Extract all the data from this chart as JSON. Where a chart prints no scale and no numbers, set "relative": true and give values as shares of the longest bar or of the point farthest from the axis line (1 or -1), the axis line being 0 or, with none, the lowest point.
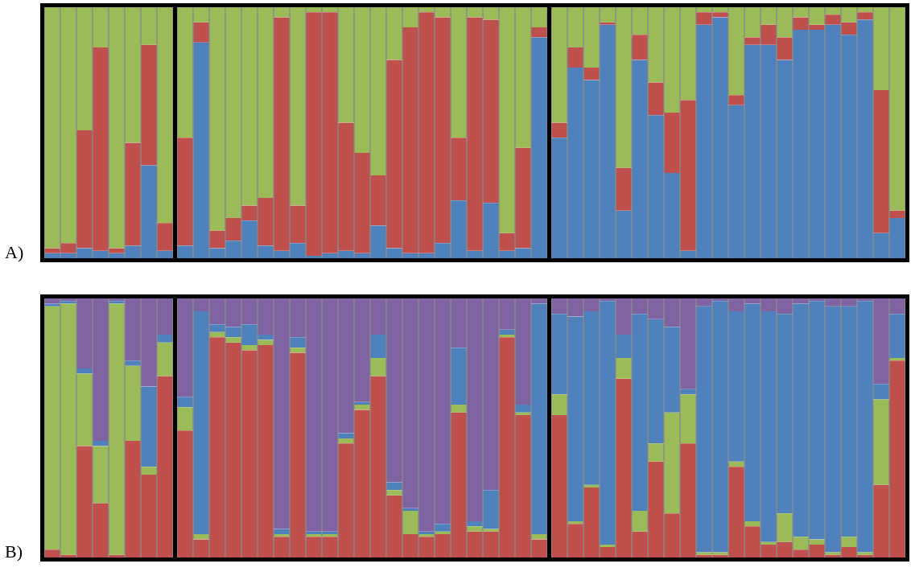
{
  "chart_data": [
    {
      "type": "bar",
      "stacked": true,
      "relative": true,
      "annotations": [
        "A)"
      ],
      "categories": [
        null,
        null,
        null,
        null,
        null,
        null,
        null,
        null
      ],
      "series": [
        {
          "color": "#4f81bd",
          "values": [
            0.02,
            0.02,
            0.04,
            0.03,
            0.02,
            0.05,
            0.37,
            0.03
          ]
        },
        {
          "color": "#c0504d",
          "values": [
            0.02,
            0.04,
            0.47,
            0.81,
            0.02,
            0.41,
            0.48,
            0.11
          ]
        },
        {
          "color": "#9bbb59",
          "values": [
            0.96,
            0.94,
            0.49,
            0.16,
            0.96,
            0.54,
            0.15,
            0.86
          ]
        }
      ]
    },
    {
      "type": "bar",
      "stacked": true,
      "relative": true,
      "categories": [
        null,
        null,
        null,
        null,
        null,
        null,
        null,
        null,
        null,
        null,
        null,
        null,
        null,
        null,
        null,
        null,
        null,
        null,
        null,
        null,
        null,
        null,
        null
      ],
      "series": [
        {
          "color": "#4f81bd",
          "values": [
            0.05,
            0.86,
            0.04,
            0.07,
            0.15,
            0.05,
            0.03,
            0.06,
            0.01,
            0.02,
            0.03,
            0.02,
            0.13,
            0.04,
            0.02,
            0.02,
            0.06,
            0.23,
            0.03,
            0.22,
            0.03,
            0.04,
            0.88
          ]
        },
        {
          "color": "#c0504d",
          "values": [
            0.43,
            0.08,
            0.07,
            0.09,
            0.06,
            0.19,
            0.93,
            0.15,
            0.97,
            0.96,
            0.51,
            0.4,
            0.2,
            0.75,
            0.9,
            0.96,
            0.9,
            0.25,
            0.93,
            0.73,
            0.07,
            0.4,
            0.04
          ]
        },
        {
          "color": "#9bbb59",
          "values": [
            0.52,
            0.06,
            0.89,
            0.84,
            0.79,
            0.76,
            0.04,
            0.79,
            0.02,
            0.02,
            0.46,
            0.58,
            0.67,
            0.21,
            0.08,
            0.02,
            0.04,
            0.52,
            0.04,
            0.05,
            0.9,
            0.56,
            0.08
          ]
        }
      ]
    },
    {
      "type": "bar",
      "stacked": true,
      "relative": true,
      "categories": [
        null,
        null,
        null,
        null,
        null,
        null,
        null,
        null,
        null,
        null,
        null,
        null,
        null,
        null,
        null,
        null,
        null,
        null,
        null,
        null,
        null,
        null
      ],
      "series": [
        {
          "color": "#4f81bd",
          "values": [
            0.48,
            0.76,
            0.71,
            0.93,
            0.19,
            0.79,
            0.57,
            0.34,
            0.03,
            0.93,
            0.96,
            0.61,
            0.85,
            0.85,
            0.79,
            0.91,
            0.91,
            0.93,
            0.89,
            0.95,
            0.1,
            0.16
          ]
        },
        {
          "color": "#c0504d",
          "values": [
            0.06,
            0.08,
            0.05,
            0.01,
            0.17,
            0.1,
            0.13,
            0.24,
            0.6,
            0.05,
            0.02,
            0.04,
            0.03,
            0.08,
            0.09,
            0.05,
            0.02,
            0.04,
            0.05,
            0.03,
            0.57,
            0.03
          ]
        },
        {
          "color": "#9bbb59",
          "values": [
            0.46,
            0.16,
            0.24,
            0.06,
            0.64,
            0.11,
            0.3,
            0.42,
            0.37,
            0.02,
            0.02,
            0.35,
            0.12,
            0.07,
            0.12,
            0.04,
            0.07,
            0.03,
            0.06,
            0.02,
            0.33,
            0.81
          ]
        }
      ]
    },
    {
      "type": "bar",
      "stacked": true,
      "relative": true,
      "annotations": [
        "B)"
      ],
      "categories": [
        null,
        null,
        null,
        null,
        null,
        null,
        null,
        null
      ],
      "series": [
        {
          "color": "#c0504d",
          "values": [
            0.03,
            0.01,
            0.43,
            0.21,
            0.01,
            0.45,
            0.32,
            0.7
          ]
        },
        {
          "color": "#9bbb59",
          "values": [
            0.94,
            0.97,
            0.28,
            0.22,
            0.97,
            0.29,
            0.03,
            0.13
          ]
        },
        {
          "color": "#4f81bd",
          "values": [
            0.01,
            0.01,
            0.02,
            0.02,
            0.01,
            0.02,
            0.31,
            0.03
          ]
        },
        {
          "color": "#8064a2",
          "values": [
            0.02,
            0.01,
            0.27,
            0.55,
            0.01,
            0.24,
            0.34,
            0.14
          ]
        }
      ]
    },
    {
      "type": "bar",
      "stacked": true,
      "relative": true,
      "categories": [
        null,
        null,
        null,
        null,
        null,
        null,
        null,
        null,
        null,
        null,
        null,
        null,
        null,
        null,
        null,
        null,
        null,
        null,
        null,
        null,
        null,
        null,
        null
      ],
      "series": [
        {
          "color": "#c0504d",
          "values": [
            0.49,
            0.07,
            0.85,
            0.83,
            0.8,
            0.82,
            0.08,
            0.79,
            0.08,
            0.08,
            0.44,
            0.57,
            0.7,
            0.24,
            0.09,
            0.08,
            0.09,
            0.56,
            0.1,
            0.1,
            0.85,
            0.55,
            0.07
          ]
        },
        {
          "color": "#9bbb59",
          "values": [
            0.09,
            0.02,
            0.02,
            0.02,
            0.02,
            0.02,
            0.01,
            0.02,
            0.01,
            0.01,
            0.02,
            0.02,
            0.07,
            0.02,
            0.09,
            0.01,
            0.01,
            0.03,
            0.02,
            0.01,
            0.01,
            0.01,
            0.02
          ]
        },
        {
          "color": "#4f81bd",
          "values": [
            0.04,
            0.86,
            0.03,
            0.04,
            0.08,
            0.02,
            0.02,
            0.04,
            0.01,
            0.01,
            0.02,
            0.01,
            0.09,
            0.03,
            0.01,
            0.01,
            0.03,
            0.22,
            0.02,
            0.15,
            0.02,
            0.03,
            0.89
          ]
        },
        {
          "color": "#8064a2",
          "values": [
            0.38,
            0.05,
            0.1,
            0.11,
            0.1,
            0.14,
            0.89,
            0.15,
            0.9,
            0.9,
            0.52,
            0.4,
            0.14,
            0.71,
            0.81,
            0.9,
            0.87,
            0.19,
            0.86,
            0.74,
            0.12,
            0.41,
            0.02
          ]
        }
      ]
    },
    {
      "type": "bar",
      "stacked": true,
      "relative": true,
      "categories": [
        null,
        null,
        null,
        null,
        null,
        null,
        null,
        null,
        null,
        null,
        null,
        null,
        null,
        null,
        null,
        null,
        null,
        null,
        null,
        null,
        null,
        null
      ],
      "series": [
        {
          "color": "#c0504d",
          "values": [
            0.55,
            0.13,
            0.27,
            0.04,
            0.69,
            0.1,
            0.37,
            0.17,
            0.44,
            0.01,
            0.01,
            0.35,
            0.12,
            0.05,
            0.06,
            0.03,
            0.05,
            0.01,
            0.04,
            0.01,
            0.28,
            0.76
          ]
        },
        {
          "color": "#9bbb59",
          "values": [
            0.08,
            0.01,
            0.01,
            0.01,
            0.08,
            0.08,
            0.07,
            0.39,
            0.19,
            0.01,
            0.01,
            0.02,
            0.02,
            0.01,
            0.11,
            0.05,
            0.02,
            0.01,
            0.04,
            0.01,
            0.33,
            0.01
          ]
        },
        {
          "color": "#4f81bd",
          "values": [
            0.31,
            0.79,
            0.67,
            0.94,
            0.09,
            0.76,
            0.48,
            0.33,
            0.02,
            0.95,
            0.97,
            0.58,
            0.84,
            0.89,
            0.77,
            0.9,
            0.92,
            0.95,
            0.89,
            0.97,
            0.06,
            0.17
          ]
        },
        {
          "color": "#8064a2",
          "values": [
            0.06,
            0.07,
            0.05,
            0.01,
            0.14,
            0.06,
            0.08,
            0.11,
            0.35,
            0.03,
            0.01,
            0.05,
            0.02,
            0.05,
            0.06,
            0.02,
            0.01,
            0.03,
            0.03,
            0.01,
            0.33,
            0.06
          ]
        }
      ]
    }
  ]
}
